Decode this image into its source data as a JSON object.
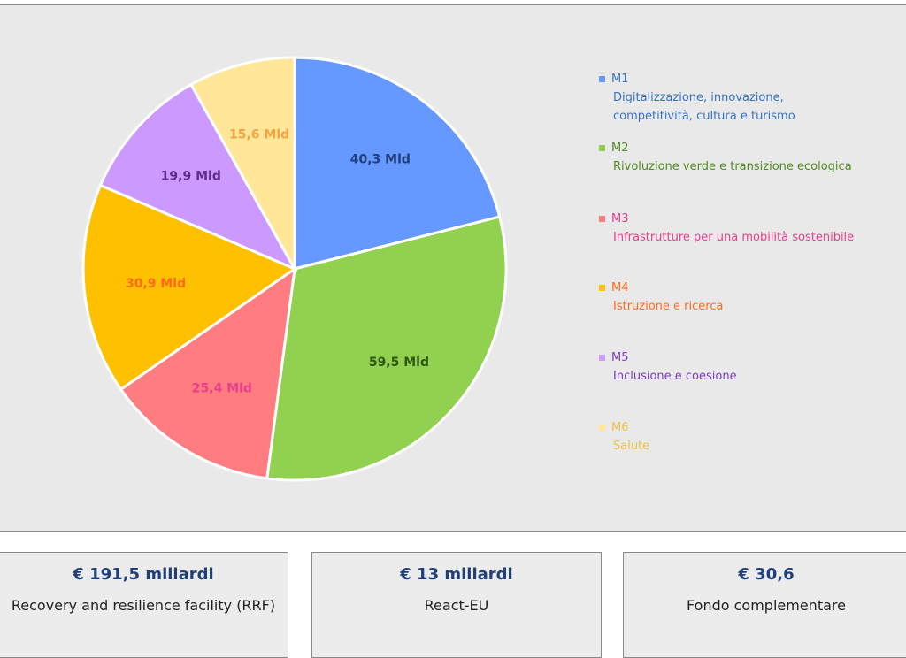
{
  "chart_data": {
    "type": "pie",
    "slices": [
      {
        "key": "M1",
        "description": "Digitalizzazione, innovazione, competitività, cultura e turismo",
        "label": "40,3 Mld",
        "value": 40.3,
        "color": "#6699ff",
        "label_color": "#1f3f7a",
        "legend_color": "#3a73c4"
      },
      {
        "key": "M2",
        "description": "Rivoluzione verde e transizione ecologica",
        "label": "59,5 Mld",
        "value": 59.5,
        "color": "#92d050",
        "label_color": "#2e5a10",
        "legend_color": "#4f8a1e"
      },
      {
        "key": "M3",
        "description": "Infrastrutture per una mobilità sostenibile",
        "label": "25,4 Mld",
        "value": 25.4,
        "color": "#ff7c80",
        "label_color": "#e83e8c",
        "legend_color": "#e83e8c"
      },
      {
        "key": "M4",
        "description": "Istruzione e ricerca",
        "label": "30,9 Mld",
        "value": 30.9,
        "color": "#ffc000",
        "label_color": "#ff6a1a",
        "legend_color": "#ff6a1a"
      },
      {
        "key": "M5",
        "description": "Inclusione e coesione",
        "label": "19,9 Mld",
        "value": 19.9,
        "color": "#cc99ff",
        "label_color": "#5b2c8a",
        "legend_color": "#7b3fbf"
      },
      {
        "key": "M6",
        "description": "Salute",
        "label": "15,6 Mld",
        "value": 15.6,
        "color": "#ffe699",
        "label_color": "#f4a340",
        "legend_color": "#f0c040"
      }
    ],
    "start_angle_deg": 0,
    "direction": "clockwise",
    "legend_position": "right"
  },
  "funds": [
    {
      "amount": "€ 191,5 miliardi",
      "label": "Recovery and resilience facility (RRF)"
    },
    {
      "amount": "€ 13 miliardi",
      "label": "React-EU"
    },
    {
      "amount": "€ 30,6",
      "label": "Fondo complementare"
    }
  ]
}
